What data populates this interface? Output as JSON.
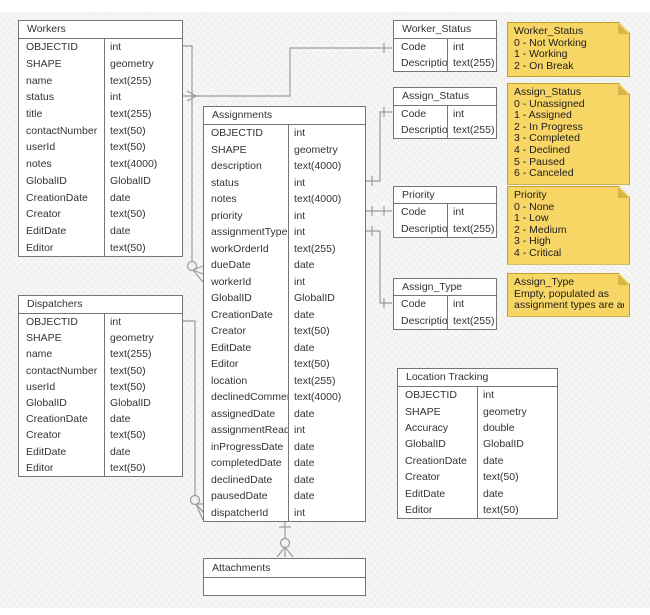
{
  "colors": {
    "background": "#f1f1ef",
    "table_fill": "#ffffff",
    "table_border": "#757575",
    "connector": "#9b9b9b",
    "note_fill": "#f7d666",
    "note_border": "#c2a02f",
    "note_fold": "#d9b548",
    "text": "#333333"
  },
  "tables": {
    "workers": {
      "title": "Workers",
      "fields": [
        {
          "name": "OBJECTID",
          "type": "int"
        },
        {
          "name": "SHAPE",
          "type": "geometry"
        },
        {
          "name": "name",
          "type": "text(255)"
        },
        {
          "name": "status",
          "type": "int"
        },
        {
          "name": "title",
          "type": "text(255)"
        },
        {
          "name": "contactNumber",
          "type": "text(50)"
        },
        {
          "name": "userId",
          "type": "text(50)"
        },
        {
          "name": "notes",
          "type": "text(4000)"
        },
        {
          "name": "GlobalID",
          "type": "GlobalID"
        },
        {
          "name": "CreationDate",
          "type": "date"
        },
        {
          "name": "Creator",
          "type": "text(50)"
        },
        {
          "name": "EditDate",
          "type": "date"
        },
        {
          "name": "Editor",
          "type": "text(50)"
        }
      ]
    },
    "dispatchers": {
      "title": "Dispatchers",
      "fields": [
        {
          "name": "OBJECTID",
          "type": "int"
        },
        {
          "name": "SHAPE",
          "type": "geometry"
        },
        {
          "name": "name",
          "type": "text(255)"
        },
        {
          "name": "contactNumber",
          "type": "text(50)"
        },
        {
          "name": "userId",
          "type": "text(50)"
        },
        {
          "name": "GlobalID",
          "type": "GlobalID"
        },
        {
          "name": "CreationDate",
          "type": "date"
        },
        {
          "name": "Creator",
          "type": "text(50)"
        },
        {
          "name": "EditDate",
          "type": "date"
        },
        {
          "name": "Editor",
          "type": "text(50)"
        }
      ]
    },
    "assignments": {
      "title": "Assignments",
      "fields": [
        {
          "name": "OBJECTID",
          "type": "int"
        },
        {
          "name": "SHAPE",
          "type": "geometry"
        },
        {
          "name": "description",
          "type": "text(4000)"
        },
        {
          "name": "status",
          "type": "int"
        },
        {
          "name": "notes",
          "type": "text(4000)"
        },
        {
          "name": "priority",
          "type": "int"
        },
        {
          "name": "assignmentType",
          "type": "int"
        },
        {
          "name": "workOrderId",
          "type": "text(255)"
        },
        {
          "name": "dueDate",
          "type": "date"
        },
        {
          "name": "workerId",
          "type": "int"
        },
        {
          "name": "GlobalID",
          "type": "GlobalID"
        },
        {
          "name": "CreationDate",
          "type": "date"
        },
        {
          "name": "Creator",
          "type": "text(50)"
        },
        {
          "name": "EditDate",
          "type": "date"
        },
        {
          "name": "Editor",
          "type": "text(50)"
        },
        {
          "name": "location",
          "type": "text(255)"
        },
        {
          "name": "declinedComment",
          "type": "text(4000)"
        },
        {
          "name": "assignedDate",
          "type": "date"
        },
        {
          "name": "assignmentRead",
          "type": "int"
        },
        {
          "name": "inProgressDate",
          "type": "date"
        },
        {
          "name": "completedDate",
          "type": "date"
        },
        {
          "name": "declinedDate",
          "type": "date"
        },
        {
          "name": "pausedDate",
          "type": "date"
        },
        {
          "name": "dispatcherId",
          "type": "int"
        }
      ]
    },
    "worker_status": {
      "title": "Worker_Status",
      "fields": [
        {
          "name": "Code",
          "type": "int"
        },
        {
          "name": "Description",
          "type": "text(255)"
        }
      ]
    },
    "assign_status": {
      "title": "Assign_Status",
      "fields": [
        {
          "name": "Code",
          "type": "int"
        },
        {
          "name": "Description",
          "type": "text(255)"
        }
      ]
    },
    "priority": {
      "title": "Priority",
      "fields": [
        {
          "name": "Code",
          "type": "int"
        },
        {
          "name": "Description",
          "type": "text(255)"
        }
      ]
    },
    "assign_type": {
      "title": "Assign_Type",
      "fields": [
        {
          "name": "Code",
          "type": "int"
        },
        {
          "name": "Description",
          "type": "text(255)"
        }
      ]
    },
    "location_tracking": {
      "title": "Location Tracking",
      "fields": [
        {
          "name": "OBJECTID",
          "type": "int"
        },
        {
          "name": "SHAPE",
          "type": "geometry"
        },
        {
          "name": "Accuracy",
          "type": "double"
        },
        {
          "name": "GlobalID",
          "type": "GlobalID"
        },
        {
          "name": "CreationDate",
          "type": "date"
        },
        {
          "name": "Creator",
          "type": "text(50)"
        },
        {
          "name": "EditDate",
          "type": "date"
        },
        {
          "name": "Editor",
          "type": "text(50)"
        }
      ]
    },
    "attachments": {
      "title": "Attachments",
      "fields": [
        {
          "name": "",
          "type": ""
        }
      ]
    }
  },
  "notes": {
    "worker_status": {
      "lines": [
        "Worker_Status",
        "0 - Not Working",
        "1 - Working",
        "2 - On Break"
      ]
    },
    "assign_status": {
      "lines": [
        "Assign_Status",
        "0 - Unassigned",
        "1 - Assigned",
        "2 - In Progress",
        "3 - Completed",
        "4 - Declined",
        "5 - Paused",
        "6 - Canceled"
      ]
    },
    "priority": {
      "lines": [
        "Priority",
        "0 - None",
        "1 - Low",
        "2 - Medium",
        "3 - High",
        "4 - Critical"
      ]
    },
    "assign_type": {
      "lines": [
        "Assign_Type",
        "Empty, populated as",
        "assignment types are added"
      ]
    }
  }
}
